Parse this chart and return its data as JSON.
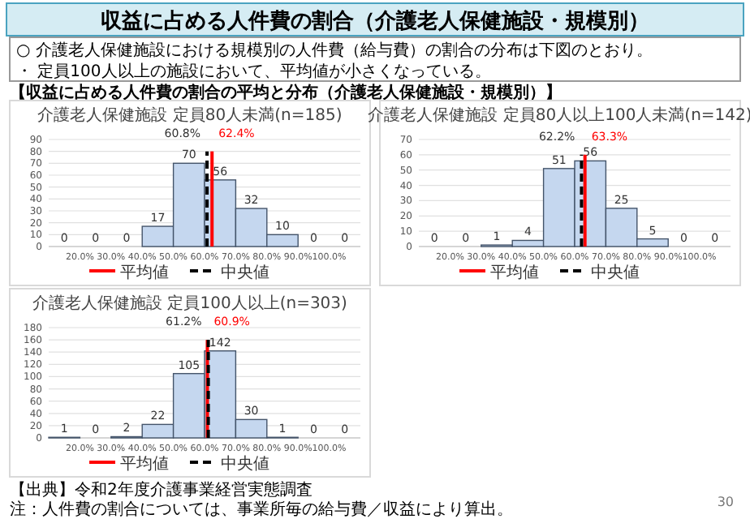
{
  "chart_data": [
    {
      "type": "other",
      "title": "収益に占める人件費の割合（介護老人保健施設・規模別）",
      "annotations": [
        "○ 介護老人保健施設における規模別の人件費（給与費）の割合の分布は下図のとおり。",
        "・ 定員100人以上の施設において、平均値が小さくなっている。",
        "【収益に占める人件費の割合の平均と分布（介護老人保健施設・規模別）】"
      ]
    },
    {
      "type": "histogram",
      "title": "介護老人保健施設 定員80人未満(n=185)",
      "bins": [
        10,
        20,
        30,
        40,
        50,
        60,
        70,
        80,
        90,
        100,
        110
      ],
      "values": [
        0,
        0,
        0,
        17,
        70,
        56,
        32,
        10,
        0,
        0
      ],
      "value_labels": [
        "0",
        "0",
        "0",
        "17",
        "70",
        "56",
        "32",
        "10",
        "0",
        "0"
      ],
      "color": "#c5d7ef",
      "xlim": [
        10,
        110
      ],
      "xticks": [
        {
          "value": 20,
          "label": "20.0%"
        },
        {
          "value": 30,
          "label": "30.0%"
        },
        {
          "value": 40,
          "label": "40.0%"
        },
        {
          "value": 50,
          "label": "50.0%"
        },
        {
          "value": 60,
          "label": "60.0%"
        },
        {
          "value": 70,
          "label": "70.0%"
        },
        {
          "value": 80,
          "label": "80.0%"
        },
        {
          "value": 90,
          "label": "90.0%"
        },
        {
          "value": 100,
          "label": "100.0%"
        }
      ],
      "ylim": [
        0,
        90
      ],
      "yticks": [
        0,
        10,
        20,
        30,
        40,
        50,
        60,
        70,
        80,
        90
      ],
      "grid": "y",
      "legend": "bottom",
      "series": [
        {
          "name": "平均値",
          "type": "line",
          "color": "#ff0000",
          "x": [
            62.4,
            62.4
          ],
          "values": [
            0,
            80
          ]
        },
        {
          "name": "中央値",
          "type": "line",
          "color": "#000000",
          "line_style": "dashed",
          "x": [
            60.8,
            60.8
          ],
          "values": [
            0,
            80
          ]
        }
      ],
      "annotations": [
        {
          "text": "62.4%",
          "x": 62.4,
          "y": 80
        },
        {
          "text": "60.8%",
          "x": 60.8,
          "y": 80
        }
      ]
    },
    {
      "type": "histogram",
      "title": "介護老人保健施設 定員80人以上100人未満(n=142)",
      "bins": [
        10,
        20,
        30,
        40,
        50,
        60,
        70,
        80,
        90,
        100,
        110
      ],
      "values": [
        0,
        0,
        1,
        4,
        51,
        56,
        25,
        5,
        0,
        0
      ],
      "value_labels": [
        "0",
        "0",
        "1",
        "4",
        "51",
        "56",
        "25",
        "5",
        "0",
        "0"
      ],
      "color": "#c5d7ef",
      "xlim": [
        10,
        110
      ],
      "xticks": [
        {
          "value": 20,
          "label": "20.0%"
        },
        {
          "value": 30,
          "label": "30.0%"
        },
        {
          "value": 40,
          "label": "40.0%"
        },
        {
          "value": 50,
          "label": "50.0%"
        },
        {
          "value": 60,
          "label": "60.0%"
        },
        {
          "value": 70,
          "label": "70.0%"
        },
        {
          "value": 80,
          "label": "80.0%"
        },
        {
          "value": 90,
          "label": "90.0%"
        },
        {
          "value": 100,
          "label": "100.0%"
        }
      ],
      "ylim": [
        0,
        70
      ],
      "yticks": [
        0,
        10,
        20,
        30,
        40,
        50,
        60,
        70
      ],
      "grid": "y",
      "legend": "bottom",
      "series": [
        {
          "name": "平均値",
          "type": "line",
          "color": "#ff0000",
          "x": [
            63.3,
            63.3
          ],
          "values": [
            0,
            60
          ]
        },
        {
          "name": "中央値",
          "type": "line",
          "color": "#000000",
          "line_style": "dashed",
          "x": [
            62.2,
            62.2
          ],
          "values": [
            0,
            60
          ]
        }
      ],
      "annotations": [
        {
          "text": "63.3%",
          "x": 63.3,
          "y": 60
        },
        {
          "text": "62.2%",
          "x": 62.2,
          "y": 60
        }
      ]
    },
    {
      "type": "histogram",
      "title": "介護老人保健施設 定員100人以上(n=303)",
      "bins": [
        10,
        20,
        30,
        40,
        50,
        60,
        70,
        80,
        90,
        100,
        110
      ],
      "values": [
        1,
        0,
        2,
        22,
        105,
        142,
        30,
        1,
        0,
        0
      ],
      "value_labels": [
        "1",
        "0",
        "2",
        "22",
        "105",
        "142",
        "30",
        "1",
        "0",
        "0"
      ],
      "color": "#c5d7ef",
      "xlim": [
        10,
        110
      ],
      "xticks": [
        {
          "value": 20,
          "label": "20.0%"
        },
        {
          "value": 30,
          "label": "30.0%"
        },
        {
          "value": 40,
          "label": "40.0%"
        },
        {
          "value": 50,
          "label": "50.0%"
        },
        {
          "value": 60,
          "label": "60.0%"
        },
        {
          "value": 70,
          "label": "70.0%"
        },
        {
          "value": 80,
          "label": "80.0%"
        },
        {
          "value": 90,
          "label": "90.0%"
        },
        {
          "value": 100,
          "label": "100.0%"
        }
      ],
      "ylim": [
        0,
        180
      ],
      "yticks": [
        0,
        20,
        40,
        60,
        80,
        100,
        120,
        140,
        160,
        180
      ],
      "grid": "y",
      "legend": "bottom",
      "series": [
        {
          "name": "平均値",
          "type": "line",
          "color": "#ff0000",
          "x": [
            60.9,
            60.9
          ],
          "values": [
            0,
            160
          ]
        },
        {
          "name": "中央値",
          "type": "line",
          "color": "#000000",
          "line_style": "dashed",
          "x": [
            61.2,
            61.2
          ],
          "values": [
            0,
            160
          ]
        }
      ],
      "annotations": [
        {
          "text": "60.9%",
          "x": 60.9,
          "y": 160
        },
        {
          "text": "61.2%",
          "x": 61.2,
          "y": 160
        }
      ]
    },
    {
      "type": "other",
      "annotations": [
        "【出典】令和2年度介護事業経営実態調査",
        "注：人件費の割合については、事業所毎の給与費／収益により算出。",
        "30"
      ]
    }
  ]
}
